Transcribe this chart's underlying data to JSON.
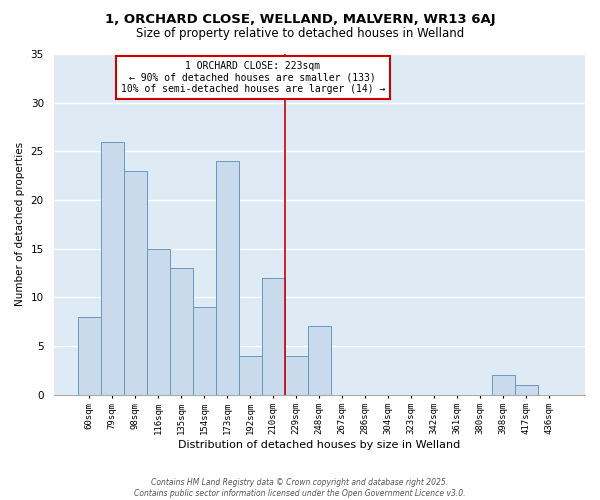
{
  "title": "1, ORCHARD CLOSE, WELLAND, MALVERN, WR13 6AJ",
  "subtitle": "Size of property relative to detached houses in Welland",
  "xlabel": "Distribution of detached houses by size in Welland",
  "ylabel": "Number of detached properties",
  "bin_labels": [
    "60sqm",
    "79sqm",
    "98sqm",
    "116sqm",
    "135sqm",
    "154sqm",
    "173sqm",
    "192sqm",
    "210sqm",
    "229sqm",
    "248sqm",
    "267sqm",
    "286sqm",
    "304sqm",
    "323sqm",
    "342sqm",
    "361sqm",
    "380sqm",
    "398sqm",
    "417sqm",
    "436sqm"
  ],
  "bar_heights": [
    8,
    26,
    23,
    15,
    13,
    9,
    24,
    4,
    12,
    4,
    7,
    0,
    0,
    0,
    0,
    0,
    0,
    0,
    2,
    1,
    0
  ],
  "bar_color": "#c8daeb",
  "bar_edge_color": "#6699bb",
  "background_color": "#deeaf4",
  "grid_color": "#ffffff",
  "marker_label": "1 ORCHARD CLOSE: 223sqm",
  "marker_line1": "← 90% of detached houses are smaller (133)",
  "marker_line2": "10% of semi-detached houses are larger (14) →",
  "marker_color": "#cc0000",
  "ylim": [
    0,
    35
  ],
  "yticks": [
    0,
    5,
    10,
    15,
    20,
    25,
    30,
    35
  ],
  "footer_line1": "Contains HM Land Registry data © Crown copyright and database right 2025.",
  "footer_line2": "Contains public sector information licensed under the Open Government Licence v3.0."
}
